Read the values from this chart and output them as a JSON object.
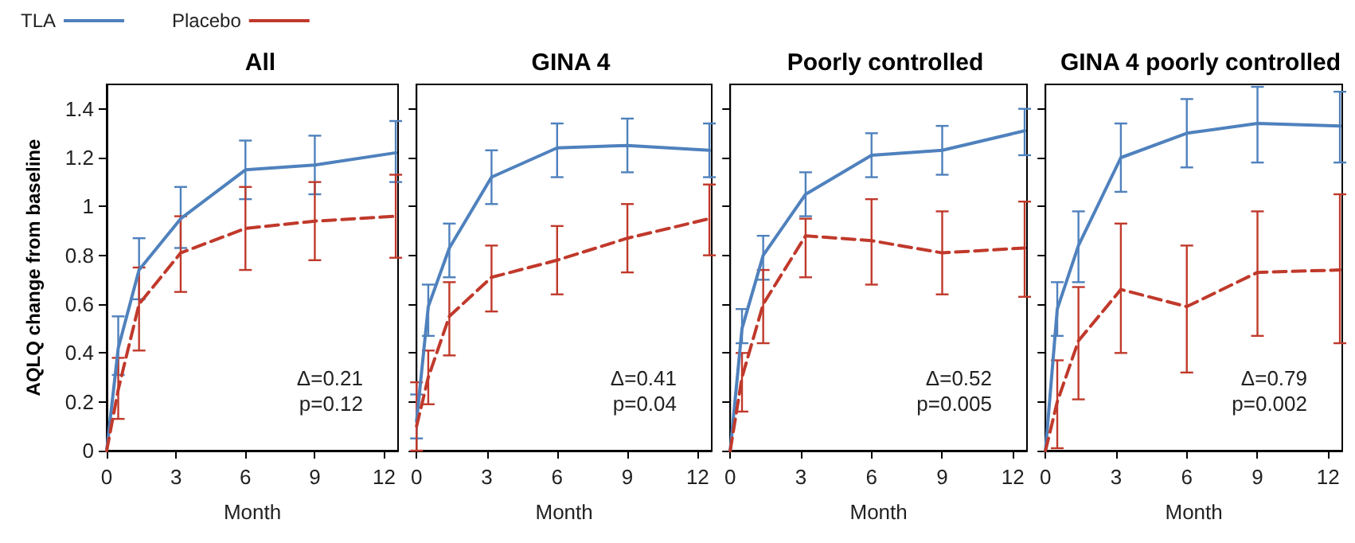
{
  "chart_data": [
    {
      "type": "line",
      "title": "All",
      "xlabel": "Month",
      "ylabel": "AQLQ change from baseline",
      "legend": "top left",
      "marker": "none",
      "xlim": [
        0,
        12.6
      ],
      "xticks": [
        0,
        3,
        6,
        9,
        12
      ],
      "ylim": [
        0,
        1.5
      ],
      "yticks": [
        0,
        0.2,
        0.4,
        0.6,
        0.8,
        1,
        1.2,
        1.4
      ],
      "annotations": [
        "Δ=0.21",
        "p=0.12"
      ],
      "series": [
        {
          "name": "TLA",
          "color": "#4f81bd",
          "line_style": "solid",
          "x": [
            0,
            0.5,
            1.4,
            3.2,
            6,
            9,
            12.5
          ],
          "values": [
            0,
            0.42,
            0.74,
            0.95,
            1.15,
            1.17,
            1.22
          ],
          "errors": [
            null,
            [
              0.31,
              0.55
            ],
            [
              0.62,
              0.87
            ],
            [
              0.83,
              1.08
            ],
            [
              1.03,
              1.27
            ],
            [
              1.05,
              1.29
            ],
            [
              1.1,
              1.35
            ]
          ]
        },
        {
          "name": "Placebo",
          "color": "#c0392b",
          "line_style": "dashed",
          "x": [
            0,
            0.5,
            1.4,
            3.2,
            6,
            9,
            12.5
          ],
          "values": [
            0,
            0.25,
            0.6,
            0.81,
            0.91,
            0.94,
            0.96
          ],
          "errors": [
            null,
            [
              0.13,
              0.38
            ],
            [
              0.41,
              0.75
            ],
            [
              0.65,
              0.96
            ],
            [
              0.74,
              1.08
            ],
            [
              0.78,
              1.1
            ],
            [
              0.79,
              1.13
            ]
          ]
        }
      ]
    },
    {
      "type": "line",
      "title": "GINA 4",
      "xlabel": "Month",
      "tick_labels": "x",
      "marker": "none",
      "xlim": [
        0,
        12.6
      ],
      "xticks": [
        0,
        3,
        6,
        9,
        12
      ],
      "ylim": [
        0,
        1.5
      ],
      "yticks": [
        0,
        0.2,
        0.4,
        0.6,
        0.8,
        1,
        1.2,
        1.4
      ],
      "annotations": [
        "Δ=0.41",
        "p=0.04"
      ],
      "series": [
        {
          "color": "#4f81bd",
          "line_style": "solid",
          "x": [
            0,
            0.5,
            1.4,
            3.2,
            6,
            9,
            12.5
          ],
          "values": [
            0.12,
            0.59,
            0.83,
            1.12,
            1.24,
            1.25,
            1.23
          ],
          "errors": [
            [
              0.05,
              0.23
            ],
            [
              0.47,
              0.68
            ],
            [
              0.71,
              0.93
            ],
            [
              1.01,
              1.23
            ],
            [
              1.12,
              1.34
            ],
            [
              1.14,
              1.36
            ],
            [
              1.12,
              1.34
            ]
          ]
        },
        {
          "color": "#c0392b",
          "line_style": "dashed",
          "x": [
            0,
            0.5,
            1.4,
            3.2,
            6,
            9,
            12.5
          ],
          "values": [
            0.1,
            0.3,
            0.55,
            0.71,
            0.78,
            0.87,
            0.95
          ],
          "errors": [
            [
              0,
              0.28
            ],
            [
              0.19,
              0.41
            ],
            [
              0.39,
              0.69
            ],
            [
              0.57,
              0.84
            ],
            [
              0.64,
              0.92
            ],
            [
              0.73,
              1.01
            ],
            [
              0.8,
              1.09
            ]
          ]
        }
      ]
    },
    {
      "type": "line",
      "title": "Poorly controlled",
      "xlabel": "Month",
      "tick_labels": "x",
      "marker": "none",
      "xlim": [
        0,
        12.6
      ],
      "xticks": [
        0,
        3,
        6,
        9,
        12
      ],
      "ylim": [
        0,
        1.5
      ],
      "yticks": [
        0,
        0.2,
        0.4,
        0.6,
        0.8,
        1,
        1.2,
        1.4
      ],
      "annotations": [
        "Δ=0.52",
        "p=0.005"
      ],
      "series": [
        {
          "color": "#4f81bd",
          "line_style": "solid",
          "x": [
            0,
            0.5,
            1.4,
            3.2,
            6,
            9,
            12.5
          ],
          "values": [
            0,
            0.5,
            0.8,
            1.05,
            1.21,
            1.23,
            1.31
          ],
          "errors": [
            null,
            [
              0.44,
              0.58
            ],
            [
              0.7,
              0.88
            ],
            [
              0.96,
              1.14
            ],
            [
              1.12,
              1.3
            ],
            [
              1.13,
              1.33
            ],
            [
              1.21,
              1.4
            ]
          ]
        },
        {
          "color": "#c0392b",
          "line_style": "dashed",
          "x": [
            0,
            0.5,
            1.4,
            3.2,
            6,
            9,
            12.5
          ],
          "values": [
            0,
            0.3,
            0.6,
            0.88,
            0.86,
            0.81,
            0.83
          ],
          "errors": [
            null,
            [
              0.16,
              0.4
            ],
            [
              0.44,
              0.74
            ],
            [
              0.71,
              0.95
            ],
            [
              0.68,
              1.03
            ],
            [
              0.64,
              0.98
            ],
            [
              0.63,
              1.02
            ]
          ]
        }
      ]
    },
    {
      "type": "line",
      "title": "GINA 4 poorly controlled",
      "xlabel": "Month",
      "tick_labels": "x",
      "marker": "none",
      "xlim": [
        0,
        12.6
      ],
      "xticks": [
        0,
        3,
        6,
        9,
        12
      ],
      "ylim": [
        0,
        1.5
      ],
      "yticks": [
        0,
        0.2,
        0.4,
        0.6,
        0.8,
        1,
        1.2,
        1.4
      ],
      "annotations": [
        "Δ=0.79",
        "p=0.002"
      ],
      "series": [
        {
          "color": "#4f81bd",
          "line_style": "solid",
          "x": [
            0,
            0.5,
            1.4,
            3.2,
            6,
            9,
            12.5
          ],
          "values": [
            0,
            0.58,
            0.84,
            1.2,
            1.3,
            1.34,
            1.33
          ],
          "errors": [
            null,
            [
              0.47,
              0.69
            ],
            [
              0.69,
              0.98
            ],
            [
              1.06,
              1.34
            ],
            [
              1.16,
              1.44
            ],
            [
              1.18,
              1.49
            ],
            [
              1.18,
              1.47
            ]
          ]
        },
        {
          "color": "#c0392b",
          "line_style": "dashed",
          "x": [
            0,
            0.5,
            1.4,
            3.2,
            6,
            9,
            12.5
          ],
          "values": [
            0,
            0.2,
            0.45,
            0.66,
            0.59,
            0.73,
            0.74
          ],
          "errors": [
            null,
            [
              0.01,
              0.37
            ],
            [
              0.21,
              0.67
            ],
            [
              0.4,
              0.93
            ],
            [
              0.32,
              0.84
            ],
            [
              0.47,
              0.98
            ],
            [
              0.44,
              1.05
            ]
          ]
        }
      ]
    }
  ]
}
